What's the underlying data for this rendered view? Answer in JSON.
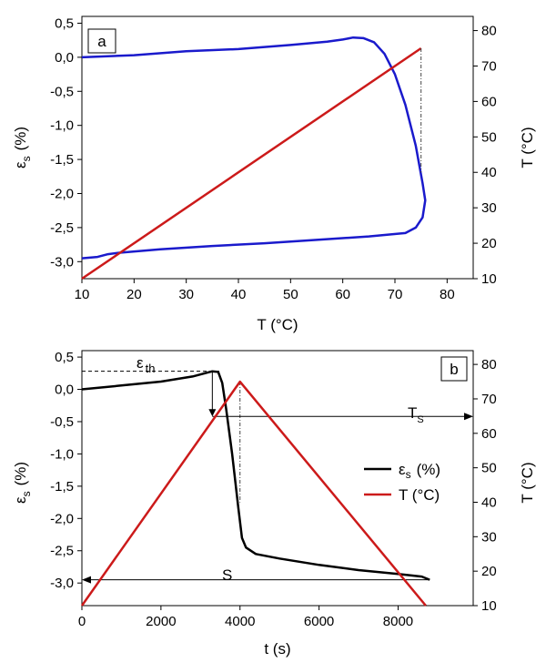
{
  "chart_data": [
    {
      "type": "line",
      "panel_label": "a",
      "xlabel": "T (°C)",
      "ylabel_main": "ε",
      "ylabel_sub": "s",
      "ylabel_unit": "(%)",
      "y2label": "T  (°C)",
      "xlim": [
        10,
        85
      ],
      "ylim": [
        -3.25,
        0.6
      ],
      "y2lim": [
        10,
        84
      ],
      "xticks": [
        "10",
        "20",
        "30",
        "40",
        "50",
        "60",
        "70",
        "80"
      ],
      "yticks": [
        "0,5",
        "0,0",
        "-0,5",
        "-1,0",
        "-1,5",
        "-2,0",
        "-2,5",
        "-3,0"
      ],
      "y2ticks": [
        "10",
        "20",
        "30",
        "40",
        "50",
        "60",
        "70",
        "80"
      ],
      "colors": {
        "strain": "#1a1acc",
        "temperature": "#cc1a1a"
      },
      "series": [
        {
          "key": "strain_vs_T",
          "axis": "left",
          "points": [
            [
              10,
              0.0
            ],
            [
              20,
              0.03
            ],
            [
              30,
              0.09
            ],
            [
              40,
              0.12
            ],
            [
              50,
              0.18
            ],
            [
              57,
              0.23
            ],
            [
              60,
              0.26
            ],
            [
              62,
              0.29
            ],
            [
              64,
              0.28
            ],
            [
              66,
              0.22
            ],
            [
              68,
              0.05
            ],
            [
              70,
              -0.25
            ],
            [
              72,
              -0.7
            ],
            [
              74,
              -1.3
            ],
            [
              75.3,
              -1.85
            ],
            [
              75.8,
              -2.1
            ],
            [
              75.3,
              -2.35
            ],
            [
              74,
              -2.5
            ],
            [
              72,
              -2.58
            ],
            [
              65,
              -2.63
            ],
            [
              55,
              -2.68
            ],
            [
              45,
              -2.73
            ],
            [
              35,
              -2.77
            ],
            [
              25,
              -2.82
            ],
            [
              17,
              -2.87
            ],
            [
              15,
              -2.89
            ],
            [
              13,
              -2.93
            ],
            [
              10,
              -2.95
            ]
          ]
        },
        {
          "key": "T_vs_T",
          "axis": "right",
          "points": [
            [
              10,
              10
            ],
            [
              75,
              75
            ]
          ]
        },
        {
          "key": "dashdot_marker",
          "axis": "right",
          "points": [
            [
              75,
              75
            ],
            [
              75,
              40
            ]
          ]
        }
      ]
    },
    {
      "type": "line",
      "panel_label": "b",
      "xlabel": "t (s)",
      "ylabel_main": "ε",
      "ylabel_sub": "s",
      "ylabel_unit": "(%)",
      "y2label": "T  (°C)",
      "xlim": [
        0,
        9900
      ],
      "ylim": [
        -3.35,
        0.6
      ],
      "y2lim": [
        10,
        84
      ],
      "xticks": [
        "0",
        "2000",
        "4000",
        "6000",
        "8000"
      ],
      "xtick_values": [
        0,
        2000,
        4000,
        6000,
        8000
      ],
      "yticks": [
        "0,5",
        "0,0",
        "-0,5",
        "-1,0",
        "-1,5",
        "-2,0",
        "-2,5",
        "-3,0"
      ],
      "y2ticks": [
        "10",
        "20",
        "30",
        "40",
        "50",
        "60",
        "70",
        "80"
      ],
      "colors": {
        "strain": "#000000",
        "temperature": "#cc1a1a"
      },
      "legend": {
        "placement": "right",
        "strain_main": "ε",
        "strain_sub": "s",
        "strain_unit": "(%)",
        "temp_label": "T  (°C)"
      },
      "annotations": {
        "eps_th_main": "ε",
        "eps_th_sub": "th",
        "Ts_main": "T",
        "Ts_sub": "S",
        "S_label": "S"
      },
      "series": [
        {
          "key": "strain_vs_t",
          "axis": "left",
          "points": [
            [
              0,
              0.0
            ],
            [
              1000,
              0.06
            ],
            [
              2000,
              0.12
            ],
            [
              2800,
              0.2
            ],
            [
              3300,
              0.28
            ],
            [
              3450,
              0.27
            ],
            [
              3550,
              0.1
            ],
            [
              3650,
              -0.3
            ],
            [
              3800,
              -1.0
            ],
            [
              3950,
              -1.8
            ],
            [
              4050,
              -2.3
            ],
            [
              4150,
              -2.45
            ],
            [
              4400,
              -2.55
            ],
            [
              5000,
              -2.62
            ],
            [
              6000,
              -2.72
            ],
            [
              7000,
              -2.8
            ],
            [
              8000,
              -2.86
            ],
            [
              8600,
              -2.9
            ],
            [
              8800,
              -2.95
            ]
          ]
        },
        {
          "key": "T_vs_t",
          "axis": "right",
          "points": [
            [
              0,
              10
            ],
            [
              4000,
              75
            ],
            [
              8700,
              10
            ]
          ]
        }
      ]
    }
  ]
}
